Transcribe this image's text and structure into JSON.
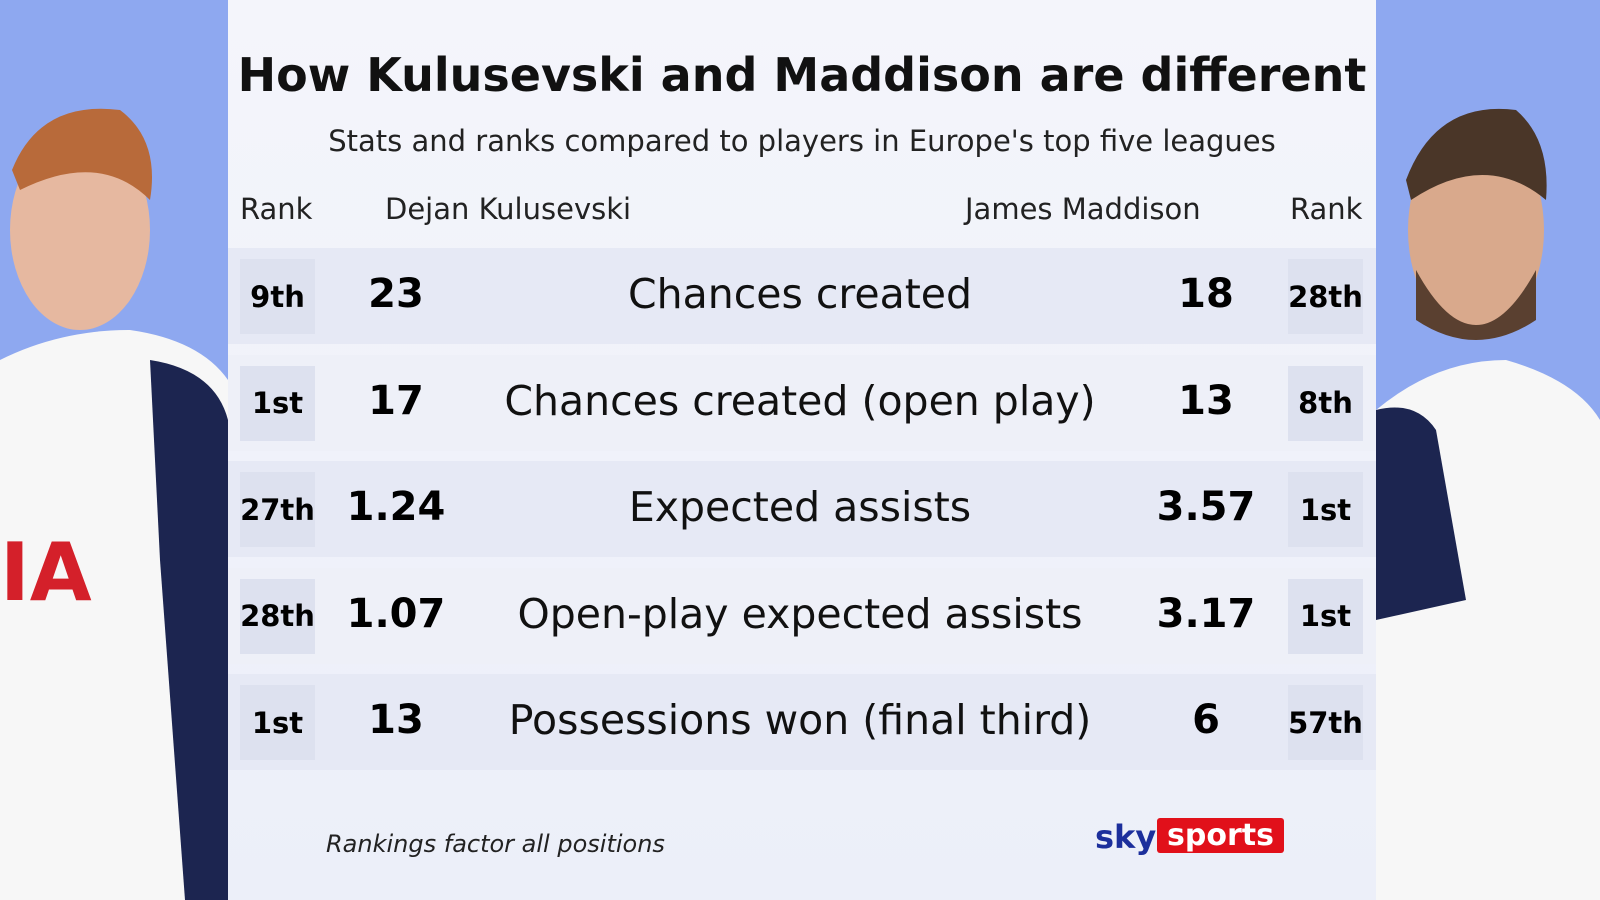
{
  "header": {
    "title": "How Kulusevski and Maddison are different",
    "subtitle": "Stats and ranks compared to players in Europe's top five leagues"
  },
  "columns": {
    "left_rank": "Rank",
    "left_player": "Dejan Kulusevski",
    "right_player": "James Maddison",
    "right_rank": "Rank"
  },
  "table": {
    "rows": [
      [
        "9th",
        "23",
        "Chances created",
        "18",
        "28th"
      ],
      [
        "1st",
        "17",
        "Chances created (open play)",
        "13",
        "8th"
      ],
      [
        "27th",
        "1.24",
        "Expected assists",
        "3.57",
        "1st"
      ],
      [
        "28th",
        "1.07",
        "Open-play expected assists",
        "3.17",
        "1st"
      ],
      [
        "1st",
        "13",
        "Possessions won (final third)",
        "6",
        "57th"
      ]
    ]
  },
  "footnote": "Rankings factor all positions",
  "logo": {
    "sky": "sky",
    "sports": "sports"
  }
}
